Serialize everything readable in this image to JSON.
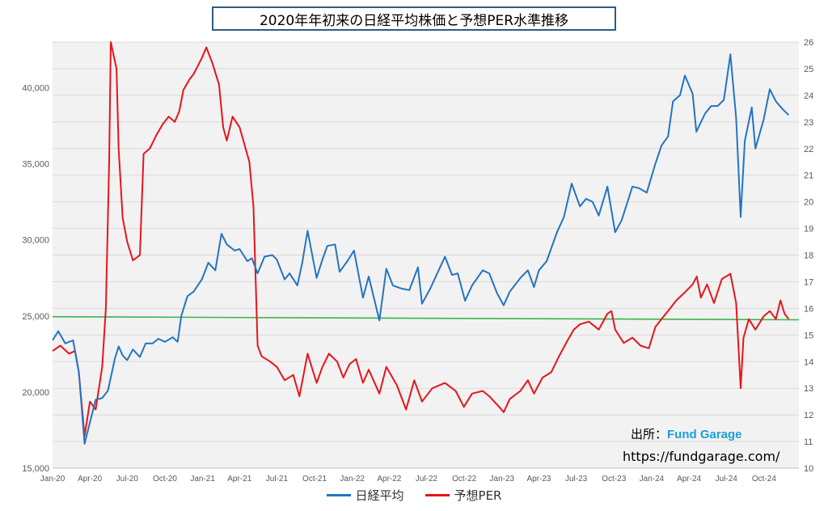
{
  "title": "2020年年初来の日経平均株価と予想PER水準推移",
  "source": {
    "label": "出所：",
    "brand": "Fund Garage",
    "url": "https://fundgarage.com/"
  },
  "colors": {
    "nikkei": "#2474c0",
    "per": "#e8141b",
    "reference": "#3cb44b",
    "plot_bg": "#f2f2f2",
    "grid": "#d9d9d9"
  },
  "chart_data": {
    "type": "line",
    "title": "2020年年初来の日経平均株価と予想PER水準推移",
    "x_tick_labels": [
      "Jan-20",
      "Apr-20",
      "Jul-20",
      "Oct-20",
      "Jan-21",
      "Apr-21",
      "Jul-21",
      "Oct-21",
      "Jan-22",
      "Apr-22",
      "Jul-22",
      "Oct-22",
      "Jan-23",
      "Apr-23",
      "Jul-23",
      "Oct-23",
      "Jan-24",
      "Apr-24",
      "Jul-24",
      "Oct-24"
    ],
    "y_left": {
      "min": 15000,
      "max": 43000,
      "ticks": [
        15000,
        20000,
        25000,
        30000,
        35000,
        40000
      ],
      "tick_labels": [
        "15,000",
        "20,000",
        "25,000",
        "30,000",
        "35,000",
        "40,000"
      ]
    },
    "y_right": {
      "min": 10,
      "max": 26,
      "ticks": [
        10,
        11,
        12,
        13,
        14,
        15,
        16,
        17,
        18,
        19,
        20,
        21,
        22,
        23,
        24,
        25,
        26
      ]
    },
    "grid": "horizontal",
    "legend_position": "bottom",
    "series": [
      {
        "name": "日経平均",
        "axis": "left",
        "points": [
          [
            "2020-01-01",
            23400
          ],
          [
            "2020-01-15",
            24000
          ],
          [
            "2020-02-01",
            23200
          ],
          [
            "2020-02-20",
            23400
          ],
          [
            "2020-03-05",
            21300
          ],
          [
            "2020-03-19",
            16600
          ],
          [
            "2020-04-01",
            18000
          ],
          [
            "2020-04-15",
            19500
          ],
          [
            "2020-05-01",
            19600
          ],
          [
            "2020-05-15",
            20100
          ],
          [
            "2020-06-01",
            22200
          ],
          [
            "2020-06-10",
            23000
          ],
          [
            "2020-06-20",
            22400
          ],
          [
            "2020-07-01",
            22100
          ],
          [
            "2020-07-15",
            22800
          ],
          [
            "2020-08-01",
            22300
          ],
          [
            "2020-08-15",
            23200
          ],
          [
            "2020-09-01",
            23200
          ],
          [
            "2020-09-15",
            23500
          ],
          [
            "2020-10-01",
            23300
          ],
          [
            "2020-10-20",
            23600
          ],
          [
            "2020-11-01",
            23300
          ],
          [
            "2020-11-10",
            25000
          ],
          [
            "2020-11-25",
            26300
          ],
          [
            "2020-12-10",
            26600
          ],
          [
            "2020-12-30",
            27400
          ],
          [
            "2021-01-15",
            28500
          ],
          [
            "2021-02-01",
            28000
          ],
          [
            "2021-02-16",
            30400
          ],
          [
            "2021-03-01",
            29700
          ],
          [
            "2021-03-20",
            29300
          ],
          [
            "2021-04-01",
            29400
          ],
          [
            "2021-04-20",
            28600
          ],
          [
            "2021-05-01",
            28800
          ],
          [
            "2021-05-15",
            27800
          ],
          [
            "2021-06-01",
            28900
          ],
          [
            "2021-06-20",
            29000
          ],
          [
            "2021-07-01",
            28700
          ],
          [
            "2021-07-20",
            27400
          ],
          [
            "2021-08-01",
            27800
          ],
          [
            "2021-08-20",
            27000
          ],
          [
            "2021-09-01",
            28500
          ],
          [
            "2021-09-14",
            30600
          ],
          [
            "2021-10-06",
            27500
          ],
          [
            "2021-10-20",
            28700
          ],
          [
            "2021-11-01",
            29600
          ],
          [
            "2021-11-20",
            29700
          ],
          [
            "2021-12-01",
            27900
          ],
          [
            "2021-12-20",
            28600
          ],
          [
            "2022-01-05",
            29300
          ],
          [
            "2022-01-27",
            26200
          ],
          [
            "2022-02-10",
            27600
          ],
          [
            "2022-03-08",
            24700
          ],
          [
            "2022-03-25",
            28100
          ],
          [
            "2022-04-10",
            27000
          ],
          [
            "2022-05-01",
            26800
          ],
          [
            "2022-05-20",
            26700
          ],
          [
            "2022-06-10",
            28200
          ],
          [
            "2022-06-20",
            25800
          ],
          [
            "2022-07-10",
            26800
          ],
          [
            "2022-08-15",
            28900
          ],
          [
            "2022-09-01",
            27700
          ],
          [
            "2022-09-15",
            27800
          ],
          [
            "2022-10-03",
            26000
          ],
          [
            "2022-10-20",
            27000
          ],
          [
            "2022-11-15",
            28000
          ],
          [
            "2022-12-01",
            27800
          ],
          [
            "2022-12-20",
            26500
          ],
          [
            "2023-01-05",
            25700
          ],
          [
            "2023-01-20",
            26600
          ],
          [
            "2023-02-15",
            27500
          ],
          [
            "2023-03-05",
            28000
          ],
          [
            "2023-03-20",
            26900
          ],
          [
            "2023-04-01",
            28000
          ],
          [
            "2023-04-20",
            28600
          ],
          [
            "2023-05-15",
            30500
          ],
          [
            "2023-06-01",
            31500
          ],
          [
            "2023-06-20",
            33700
          ],
          [
            "2023-07-10",
            32200
          ],
          [
            "2023-07-25",
            32700
          ],
          [
            "2023-08-10",
            32500
          ],
          [
            "2023-08-25",
            31600
          ],
          [
            "2023-09-15",
            33500
          ],
          [
            "2023-10-04",
            30500
          ],
          [
            "2023-10-20",
            31300
          ],
          [
            "2023-11-15",
            33500
          ],
          [
            "2023-12-01",
            33400
          ],
          [
            "2023-12-20",
            33100
          ],
          [
            "2024-01-10",
            35000
          ],
          [
            "2024-01-25",
            36200
          ],
          [
            "2024-02-10",
            36800
          ],
          [
            "2024-02-22",
            39100
          ],
          [
            "2024-03-10",
            39500
          ],
          [
            "2024-03-22",
            40800
          ],
          [
            "2024-04-10",
            39600
          ],
          [
            "2024-04-19",
            37100
          ],
          [
            "2024-05-10",
            38300
          ],
          [
            "2024-05-25",
            38800
          ],
          [
            "2024-06-10",
            38800
          ],
          [
            "2024-06-25",
            39200
          ],
          [
            "2024-07-11",
            42200
          ],
          [
            "2024-07-25",
            38000
          ],
          [
            "2024-08-05",
            31500
          ],
          [
            "2024-08-15",
            36500
          ],
          [
            "2024-09-01",
            38700
          ],
          [
            "2024-09-10",
            36000
          ],
          [
            "2024-09-30",
            37900
          ],
          [
            "2024-10-15",
            39900
          ],
          [
            "2024-10-30",
            39100
          ],
          [
            "2024-11-15",
            38600
          ],
          [
            "2024-11-30",
            38200
          ]
        ]
      },
      {
        "name": "予想PER",
        "axis": "right",
        "points": [
          [
            "2020-01-01",
            14.4
          ],
          [
            "2020-01-20",
            14.6
          ],
          [
            "2020-02-10",
            14.3
          ],
          [
            "2020-02-25",
            14.4
          ],
          [
            "2020-03-05",
            13.6
          ],
          [
            "2020-03-19",
            11.2
          ],
          [
            "2020-04-01",
            12.5
          ],
          [
            "2020-04-15",
            12.2
          ],
          [
            "2020-05-01",
            13.8
          ],
          [
            "2020-05-10",
            16.0
          ],
          [
            "2020-05-18",
            21.5
          ],
          [
            "2020-05-22",
            26.5
          ],
          [
            "2020-06-05",
            25.0
          ],
          [
            "2020-06-10",
            22.0
          ],
          [
            "2020-06-20",
            19.4
          ],
          [
            "2020-07-01",
            18.5
          ],
          [
            "2020-07-15",
            17.8
          ],
          [
            "2020-08-01",
            18.0
          ],
          [
            "2020-08-10",
            21.8
          ],
          [
            "2020-08-25",
            22.0
          ],
          [
            "2020-09-10",
            22.5
          ],
          [
            "2020-09-25",
            22.9
          ],
          [
            "2020-10-10",
            23.2
          ],
          [
            "2020-10-25",
            23.0
          ],
          [
            "2020-11-05",
            23.4
          ],
          [
            "2020-11-15",
            24.2
          ],
          [
            "2020-11-30",
            24.6
          ],
          [
            "2020-12-10",
            24.8
          ],
          [
            "2020-12-30",
            25.4
          ],
          [
            "2021-01-10",
            25.8
          ],
          [
            "2021-01-25",
            25.2
          ],
          [
            "2021-02-10",
            24.4
          ],
          [
            "2021-02-20",
            22.8
          ],
          [
            "2021-03-01",
            22.3
          ],
          [
            "2021-03-15",
            23.2
          ],
          [
            "2021-04-01",
            22.8
          ],
          [
            "2021-04-25",
            21.5
          ],
          [
            "2021-05-05",
            19.8
          ],
          [
            "2021-05-15",
            14.6
          ],
          [
            "2021-05-25",
            14.2
          ],
          [
            "2021-06-15",
            14.0
          ],
          [
            "2021-07-01",
            13.8
          ],
          [
            "2021-07-20",
            13.3
          ],
          [
            "2021-08-10",
            13.5
          ],
          [
            "2021-08-25",
            12.7
          ],
          [
            "2021-09-14",
            14.3
          ],
          [
            "2021-10-06",
            13.2
          ],
          [
            "2021-10-20",
            13.8
          ],
          [
            "2021-11-05",
            14.3
          ],
          [
            "2021-11-25",
            14.0
          ],
          [
            "2021-12-10",
            13.4
          ],
          [
            "2021-12-25",
            13.9
          ],
          [
            "2022-01-10",
            14.1
          ],
          [
            "2022-01-27",
            13.2
          ],
          [
            "2022-02-10",
            13.7
          ],
          [
            "2022-03-08",
            12.8
          ],
          [
            "2022-03-25",
            13.8
          ],
          [
            "2022-04-20",
            13.1
          ],
          [
            "2022-05-12",
            12.2
          ],
          [
            "2022-06-01",
            13.3
          ],
          [
            "2022-06-20",
            12.5
          ],
          [
            "2022-07-15",
            13.0
          ],
          [
            "2022-08-15",
            13.2
          ],
          [
            "2022-09-10",
            12.9
          ],
          [
            "2022-09-30",
            12.3
          ],
          [
            "2022-10-20",
            12.8
          ],
          [
            "2022-11-15",
            12.9
          ],
          [
            "2022-12-01",
            12.7
          ],
          [
            "2022-12-25",
            12.3
          ],
          [
            "2023-01-05",
            12.1
          ],
          [
            "2023-01-20",
            12.6
          ],
          [
            "2023-02-15",
            12.9
          ],
          [
            "2023-03-05",
            13.3
          ],
          [
            "2023-03-20",
            12.8
          ],
          [
            "2023-04-10",
            13.4
          ],
          [
            "2023-05-01",
            13.6
          ],
          [
            "2023-05-20",
            14.2
          ],
          [
            "2023-06-10",
            14.8
          ],
          [
            "2023-06-25",
            15.2
          ],
          [
            "2023-07-10",
            15.4
          ],
          [
            "2023-08-01",
            15.5
          ],
          [
            "2023-08-25",
            15.2
          ],
          [
            "2023-09-15",
            15.8
          ],
          [
            "2023-09-25",
            15.9
          ],
          [
            "2023-10-04",
            15.2
          ],
          [
            "2023-10-25",
            14.7
          ],
          [
            "2023-11-15",
            14.9
          ],
          [
            "2023-12-05",
            14.6
          ],
          [
            "2023-12-25",
            14.5
          ],
          [
            "2024-01-10",
            15.3
          ],
          [
            "2024-01-25",
            15.6
          ],
          [
            "2024-02-15",
            16.0
          ],
          [
            "2024-03-01",
            16.3
          ],
          [
            "2024-03-22",
            16.6
          ],
          [
            "2024-04-10",
            16.9
          ],
          [
            "2024-04-20",
            17.2
          ],
          [
            "2024-04-30",
            16.4
          ],
          [
            "2024-05-15",
            16.9
          ],
          [
            "2024-06-01",
            16.2
          ],
          [
            "2024-06-20",
            17.1
          ],
          [
            "2024-07-11",
            17.3
          ],
          [
            "2024-07-25",
            16.2
          ],
          [
            "2024-08-05",
            13.0
          ],
          [
            "2024-08-12",
            14.9
          ],
          [
            "2024-08-25",
            15.6
          ],
          [
            "2024-09-10",
            15.2
          ],
          [
            "2024-09-30",
            15.7
          ],
          [
            "2024-10-15",
            15.9
          ],
          [
            "2024-10-30",
            15.6
          ],
          [
            "2024-11-10",
            16.3
          ],
          [
            "2024-11-20",
            15.8
          ],
          [
            "2024-11-30",
            15.6
          ]
        ]
      }
    ],
    "reference_line": {
      "axis": "left",
      "values": [
        24950,
        24750
      ]
    }
  }
}
